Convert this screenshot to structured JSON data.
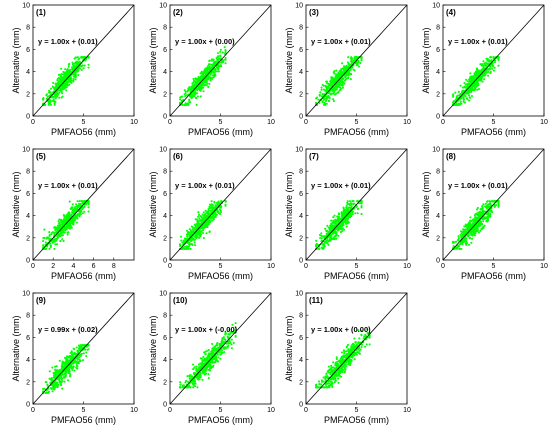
{
  "figure": {
    "point_color": "#00ff00",
    "line_color": "#000000",
    "panels": [
      {
        "label": "(1)",
        "equation": "y = 1.00x + (0.01)",
        "xlabel": "PMFAO56 (mm)",
        "ylabel": "Alternative (mm)",
        "xticks": [
          "0",
          "5",
          "10"
        ],
        "yticks": [
          "0",
          "2",
          "4",
          "6",
          "8",
          "10"
        ]
      },
      {
        "label": "(2)",
        "equation": "y = 1.00x + (0.00)",
        "xlabel": "PMFAO56 (mm)",
        "ylabel": "Alternative (mm)",
        "xticks": [
          "0",
          "5",
          "10"
        ],
        "yticks": [
          "0",
          "2",
          "4",
          "6",
          "8",
          "10"
        ]
      },
      {
        "label": "(3)",
        "equation": "y = 1.00x + (0.01)",
        "xlabel": "PMFAO56 (mm)",
        "ylabel": "Alternative (mm)",
        "xticks": [
          "0",
          "5",
          "10"
        ],
        "yticks": [
          "0",
          "2",
          "4",
          "6",
          "8",
          "10"
        ]
      },
      {
        "label": "(4)",
        "equation": "y = 1.00x + (0.01)",
        "xlabel": "PMFAO56 (mm)",
        "ylabel": "Alternative (mm)",
        "xticks": [
          "0",
          "5",
          "10"
        ],
        "yticks": [
          "0",
          "2",
          "4",
          "6",
          "8",
          "10"
        ]
      },
      {
        "label": "(5)",
        "equation": "y = 1.00x + (0.01)",
        "xlabel": "PMFAO56 (mm)",
        "ylabel": "Alternative (mm)",
        "xticks": [
          "0",
          "2",
          "4",
          "6",
          "8"
        ],
        "yticks": [
          "0",
          "2",
          "4",
          "6",
          "8",
          "10"
        ]
      },
      {
        "label": "(6)",
        "equation": "y = 1.00x + (0.01)",
        "xlabel": "PMFAO56 (mm)",
        "ylabel": "Alternative (mm)",
        "xticks": [
          "0",
          "5",
          "10"
        ],
        "yticks": [
          "0",
          "2",
          "4",
          "6",
          "8",
          "10"
        ]
      },
      {
        "label": "(7)",
        "equation": "y = 1.00x + (0.01)",
        "xlabel": "PMFAO56 (mm)",
        "ylabel": "Alternative (mm)",
        "xticks": [
          "0",
          "5",
          "10"
        ],
        "yticks": [
          "0",
          "2",
          "4",
          "6",
          "8",
          "10"
        ]
      },
      {
        "label": "(8)",
        "equation": "y = 1.00x + (0.01)",
        "xlabel": "PMFAO56 (mm)",
        "ylabel": "Alternative (mm)",
        "xticks": [
          "0",
          "5",
          "10"
        ],
        "yticks": [
          "0",
          "2",
          "4",
          "6",
          "8",
          "10"
        ]
      },
      {
        "label": "(9)",
        "equation": "y = 0.99x + (0.02)",
        "xlabel": "PMFAO56 (mm)",
        "ylabel": "Alternative (mm)",
        "xticks": [
          "0",
          "5",
          "10"
        ],
        "yticks": [
          "0",
          "2",
          "4",
          "6",
          "8",
          "10"
        ]
      },
      {
        "label": "(10)",
        "equation": "y = 1.00x + (-0.00)",
        "xlabel": "PMFAO56 (mm)",
        "ylabel": "Alternative (mm)",
        "xticks": [
          "0",
          "5",
          "10"
        ],
        "yticks": [
          "0",
          "2",
          "4",
          "6",
          "8",
          "10"
        ]
      },
      {
        "label": "(11)",
        "equation": "y = 1.00x + (0.00)",
        "xlabel": "PMFAO56 (mm)",
        "ylabel": "Alternative (mm)",
        "xticks": [
          "0",
          "5",
          "10"
        ],
        "yticks": [
          "0",
          "2",
          "4",
          "6",
          "8",
          "10"
        ]
      }
    ]
  },
  "chart_data": [
    {
      "type": "scatter",
      "panel": "(1)",
      "fit": {
        "slope": 1.0,
        "intercept": 0.01
      },
      "xlim": [
        0,
        10
      ],
      "ylim": [
        0,
        10
      ],
      "cluster": {
        "x_range": [
          1.0,
          5.5
        ],
        "y_range": [
          1.0,
          5.3
        ]
      },
      "reference_line": "1:1"
    },
    {
      "type": "scatter",
      "panel": "(2)",
      "fit": {
        "slope": 1.0,
        "intercept": 0.0
      },
      "xlim": [
        0,
        10
      ],
      "ylim": [
        0,
        10
      ],
      "cluster": {
        "x_range": [
          1.0,
          5.5
        ],
        "y_range": [
          1.0,
          6.2
        ]
      },
      "reference_line": "1:1"
    },
    {
      "type": "scatter",
      "panel": "(3)",
      "fit": {
        "slope": 1.0,
        "intercept": 0.01
      },
      "xlim": [
        0,
        10
      ],
      "ylim": [
        0,
        10
      ],
      "cluster": {
        "x_range": [
          1.0,
          5.5
        ],
        "y_range": [
          1.0,
          5.3
        ]
      },
      "reference_line": "1:1"
    },
    {
      "type": "scatter",
      "panel": "(4)",
      "fit": {
        "slope": 1.0,
        "intercept": 0.01
      },
      "xlim": [
        0,
        10
      ],
      "ylim": [
        0,
        10
      ],
      "cluster": {
        "x_range": [
          1.0,
          5.5
        ],
        "y_range": [
          1.0,
          5.3
        ]
      },
      "reference_line": "1:1"
    },
    {
      "type": "scatter",
      "panel": "(5)",
      "fit": {
        "slope": 1.0,
        "intercept": 0.01
      },
      "xlim": [
        0,
        10
      ],
      "ylim": [
        0,
        10
      ],
      "cluster": {
        "x_range": [
          1.0,
          5.5
        ],
        "y_range": [
          1.0,
          5.3
        ]
      },
      "reference_line": "1:1"
    },
    {
      "type": "scatter",
      "panel": "(6)",
      "fit": {
        "slope": 1.0,
        "intercept": 0.01
      },
      "xlim": [
        0,
        10
      ],
      "ylim": [
        0,
        10
      ],
      "cluster": {
        "x_range": [
          1.0,
          5.5
        ],
        "y_range": [
          1.0,
          5.3
        ]
      },
      "reference_line": "1:1"
    },
    {
      "type": "scatter",
      "panel": "(7)",
      "fit": {
        "slope": 1.0,
        "intercept": 0.01
      },
      "xlim": [
        0,
        10
      ],
      "ylim": [
        0,
        10
      ],
      "cluster": {
        "x_range": [
          1.0,
          5.5
        ],
        "y_range": [
          1.0,
          5.3
        ]
      },
      "reference_line": "1:1"
    },
    {
      "type": "scatter",
      "panel": "(8)",
      "fit": {
        "slope": 1.0,
        "intercept": 0.01
      },
      "xlim": [
        0,
        10
      ],
      "ylim": [
        0,
        10
      ],
      "cluster": {
        "x_range": [
          1.0,
          5.5
        ],
        "y_range": [
          1.0,
          5.3
        ]
      },
      "reference_line": "1:1"
    },
    {
      "type": "scatter",
      "panel": "(9)",
      "fit": {
        "slope": 0.99,
        "intercept": 0.02
      },
      "xlim": [
        0,
        10
      ],
      "ylim": [
        0,
        10
      ],
      "cluster": {
        "x_range": [
          1.0,
          5.5
        ],
        "y_range": [
          1.0,
          5.3
        ]
      },
      "reference_line": "1:1"
    },
    {
      "type": "scatter",
      "panel": "(10)",
      "fit": {
        "slope": 1.0,
        "intercept": -0.0
      },
      "xlim": [
        0,
        10
      ],
      "ylim": [
        0,
        10
      ],
      "cluster": {
        "x_range": [
          1.0,
          6.5
        ],
        "y_range": [
          1.5,
          7.5
        ]
      },
      "reference_line": "1:1"
    },
    {
      "type": "scatter",
      "panel": "(11)",
      "fit": {
        "slope": 1.0,
        "intercept": 0.0
      },
      "xlim": [
        0,
        10
      ],
      "ylim": [
        0,
        10
      ],
      "cluster": {
        "x_range": [
          1.0,
          6.3
        ],
        "y_range": [
          1.5,
          6.8
        ]
      },
      "reference_line": "1:1"
    }
  ]
}
